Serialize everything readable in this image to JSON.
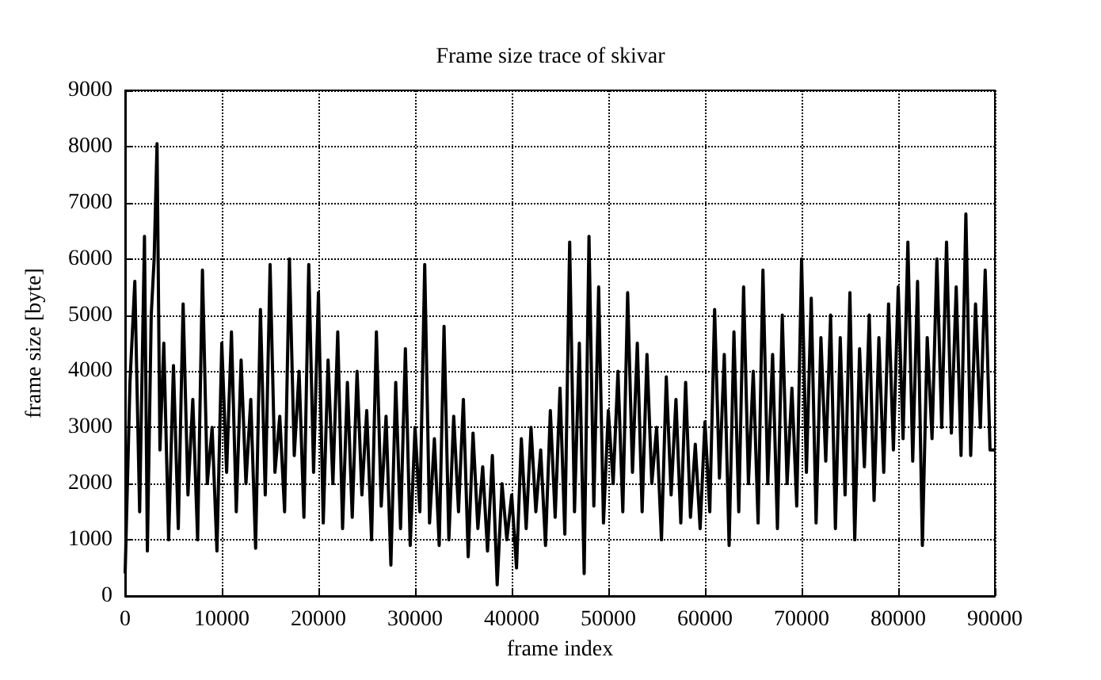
{
  "chart_data": {
    "type": "line",
    "title": "Frame size trace of skivar",
    "xlabel": "frame index",
    "ylabel": "frame size [byte]",
    "xlim": [
      0,
      90000
    ],
    "xticks": [
      0,
      10000,
      20000,
      30000,
      40000,
      50000,
      60000,
      70000,
      80000,
      90000
    ],
    "ylim": [
      0,
      9000
    ],
    "yticks": [
      0,
      1000,
      2000,
      3000,
      4000,
      5000,
      6000,
      7000,
      8000,
      9000
    ],
    "grid": true,
    "marker": "none",
    "line_style": "solid",
    "series": [
      {
        "color": "#000000",
        "x": [
          0,
          500,
          1000,
          1500,
          2000,
          2300,
          2700,
          3000,
          3300,
          3600,
          4000,
          4500,
          5000,
          5500,
          6000,
          6500,
          7000,
          7500,
          8000,
          8500,
          9000,
          9500,
          10000,
          10500,
          11000,
          11500,
          12000,
          12500,
          13000,
          13500,
          14000,
          14500,
          15000,
          15500,
          16000,
          16500,
          17000,
          17500,
          18000,
          18500,
          19000,
          19500,
          20000,
          20500,
          21000,
          21500,
          22000,
          22500,
          23000,
          23500,
          24000,
          24500,
          25000,
          25500,
          26000,
          26500,
          27000,
          27500,
          28000,
          28500,
          29000,
          29500,
          30000,
          30500,
          31000,
          31500,
          32000,
          32500,
          33000,
          33500,
          34000,
          34500,
          35000,
          35500,
          36000,
          36500,
          37000,
          37500,
          38000,
          38500,
          39000,
          39500,
          40000,
          40500,
          41000,
          41500,
          42000,
          42500,
          43000,
          43500,
          44000,
          44500,
          45000,
          45500,
          46000,
          46500,
          47000,
          47500,
          48000,
          48500,
          49000,
          49500,
          50000,
          50500,
          51000,
          51500,
          52000,
          52500,
          53000,
          53500,
          54000,
          54500,
          55000,
          55500,
          56000,
          56500,
          57000,
          57500,
          58000,
          58500,
          59000,
          59500,
          60000,
          60500,
          61000,
          61500,
          62000,
          62500,
          63000,
          63500,
          64000,
          64500,
          65000,
          65500,
          66000,
          66500,
          67000,
          67500,
          68000,
          68500,
          69000,
          69500,
          70000,
          70500,
          71000,
          71500,
          72000,
          72500,
          73000,
          73500,
          74000,
          74500,
          75000,
          75500,
          76000,
          76500,
          77000,
          77500,
          78000,
          78500,
          79000,
          79500,
          80000,
          80500,
          81000,
          81500,
          82000,
          82500,
          83000,
          83500,
          84000,
          84500,
          85000,
          85500,
          86000,
          86500,
          87000,
          87500,
          88000,
          88500,
          89000,
          89500,
          90000
        ],
        "values": [
          400,
          3800,
          5600,
          1500,
          6400,
          800,
          5000,
          6000,
          8050,
          2600,
          4500,
          1000,
          4100,
          1200,
          5200,
          1800,
          3500,
          1000,
          5800,
          2000,
          3000,
          800,
          4500,
          2200,
          4700,
          1500,
          4200,
          2000,
          3500,
          850,
          5100,
          1800,
          5900,
          2200,
          3200,
          1500,
          6000,
          2500,
          4000,
          1400,
          5900,
          2200,
          5400,
          1300,
          4200,
          2000,
          4700,
          1200,
          3800,
          1400,
          4000,
          1800,
          3300,
          1000,
          4700,
          1600,
          3200,
          550,
          3800,
          1200,
          4400,
          900,
          3000,
          1500,
          5900,
          1300,
          2800,
          900,
          4800,
          1000,
          3200,
          1500,
          3500,
          700,
          2900,
          1200,
          2300,
          800,
          2500,
          200,
          2000,
          1000,
          1800,
          500,
          2800,
          1200,
          3000,
          1500,
          2600,
          900,
          3300,
          1400,
          3700,
          1100,
          6300,
          1500,
          4500,
          400,
          6400,
          1600,
          5500,
          1300,
          3300,
          2000,
          4000,
          1500,
          5400,
          2200,
          4500,
          1500,
          4300,
          2000,
          3000,
          1000,
          3900,
          1800,
          3500,
          1300,
          3800,
          1400,
          2700,
          1200,
          3100,
          1500,
          5100,
          2100,
          4300,
          900,
          4700,
          1500,
          5500,
          2000,
          4000,
          1300,
          5800,
          2000,
          4300,
          1200,
          5000,
          2000,
          3700,
          1600,
          6000,
          2200,
          5300,
          1300,
          4600,
          2400,
          5000,
          1200,
          4600,
          1800,
          5400,
          1000,
          4400,
          2300,
          5000,
          1700,
          4600,
          2200,
          5200,
          2600,
          5500,
          2800,
          6300,
          2400,
          5600,
          900,
          4600,
          2800,
          6000,
          3000,
          6300,
          2900,
          5500,
          2500,
          6800,
          2500,
          5200,
          3000,
          5800,
          2600,
          2600
        ]
      }
    ]
  }
}
